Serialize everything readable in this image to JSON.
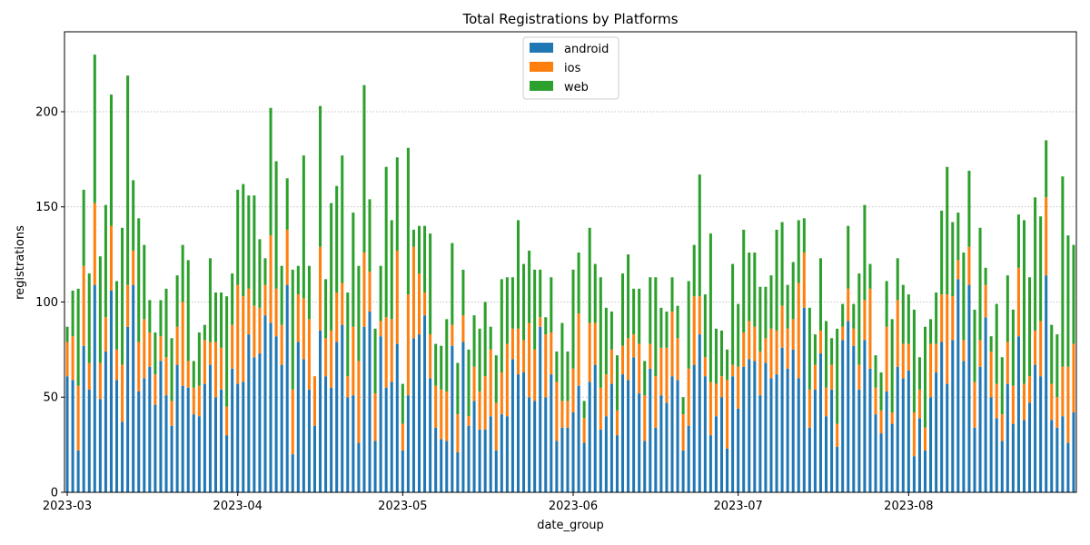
{
  "chart_data": {
    "type": "bar",
    "stacked": true,
    "title": "Total Registrations by Platforms",
    "xlabel": "date_group",
    "ylabel": "registrations",
    "ylim": [
      0,
      242
    ],
    "grid": "horizontal-dotted",
    "legend_position": "top-center",
    "date_start": "2023-03-01",
    "x_ticks": [
      "2023-03",
      "2023-04",
      "2023-05",
      "2023-06",
      "2023-07",
      "2023-08"
    ],
    "x_tick_days": [
      0,
      31,
      61,
      92,
      122,
      153
    ],
    "y_ticks": [
      0,
      50,
      100,
      150,
      200
    ],
    "colors": {
      "android": "#1f77b4",
      "ios": "#ff7f0e",
      "web": "#2ca02c"
    },
    "series": [
      {
        "name": "android",
        "values": [
          61,
          59,
          22,
          77,
          54,
          109,
          49,
          74,
          106,
          59,
          37,
          87,
          109,
          53,
          60,
          66,
          46,
          69,
          51,
          35,
          67,
          56,
          55,
          41,
          40,
          57,
          67,
          50,
          54,
          30,
          65,
          57,
          58,
          83,
          71,
          73,
          93,
          89,
          82,
          67,
          109,
          20,
          79,
          70,
          54,
          35,
          85,
          61,
          55,
          79,
          88,
          50,
          51,
          26,
          87,
          95,
          27,
          82,
          55,
          58,
          78,
          22,
          51,
          81,
          83,
          93,
          60,
          34,
          28,
          27,
          77,
          21,
          79,
          35,
          48,
          33,
          33,
          40,
          22,
          41,
          40,
          70,
          62,
          63,
          50,
          48,
          87,
          50,
          62,
          27,
          34,
          34,
          42,
          56,
          26,
          58,
          67,
          33,
          40,
          57,
          30,
          62,
          59,
          71,
          52,
          27,
          65,
          34,
          51,
          47,
          61,
          59,
          22,
          35,
          67,
          83,
          61,
          30,
          40,
          50,
          23,
          61,
          44,
          66,
          70,
          69,
          51,
          68,
          60,
          62,
          76,
          65,
          75,
          60,
          97,
          34,
          54,
          73,
          40,
          54,
          24,
          80,
          90,
          77,
          54,
          80,
          65,
          41,
          31,
          53,
          36,
          66,
          60,
          64,
          19,
          39,
          22,
          50,
          63,
          79,
          57,
          80,
          112,
          69,
          109,
          34,
          66,
          92,
          50,
          39,
          27,
          57,
          36,
          82,
          38,
          47,
          67,
          61,
          114,
          38,
          34,
          40,
          26,
          42
        ],
        "labels": []
      },
      {
        "name": "ios",
        "values": [
          18,
          23,
          34,
          42,
          14,
          43,
          19,
          18,
          34,
          16,
          30,
          22,
          18,
          26,
          31,
          18,
          16,
          13,
          20,
          13,
          20,
          44,
          14,
          14,
          16,
          23,
          12,
          29,
          22,
          15,
          23,
          52,
          45,
          24,
          27,
          24,
          16,
          46,
          25,
          21,
          29,
          34,
          25,
          32,
          37,
          26,
          44,
          20,
          30,
          26,
          22,
          11,
          36,
          43,
          39,
          21,
          25,
          8,
          37,
          33,
          49,
          14,
          53,
          48,
          32,
          12,
          23,
          22,
          26,
          26,
          11,
          20,
          14,
          5,
          18,
          20,
          28,
          35,
          25,
          22,
          38,
          16,
          24,
          17,
          39,
          27,
          5,
          33,
          22,
          31,
          14,
          14,
          23,
          38,
          13,
          31,
          22,
          22,
          22,
          18,
          13,
          15,
          22,
          12,
          26,
          24,
          13,
          27,
          25,
          29,
          34,
          22,
          19,
          30,
          36,
          20,
          10,
          28,
          17,
          11,
          36,
          6,
          22,
          18,
          20,
          18,
          23,
          13,
          26,
          23,
          22,
          21,
          16,
          50,
          29,
          20,
          13,
          12,
          15,
          13,
          12,
          7,
          17,
          9,
          13,
          21,
          42,
          14,
          12,
          34,
          6,
          35,
          18,
          14,
          23,
          15,
          12,
          28,
          15,
          25,
          47,
          23,
          10,
          11,
          20,
          24,
          14,
          17,
          24,
          18,
          14,
          22,
          20,
          36,
          19,
          14,
          18,
          29,
          41,
          19,
          16,
          26,
          40,
          36
        ],
        "labels": []
      },
      {
        "name": "web",
        "values": [
          8,
          24,
          51,
          40,
          47,
          78,
          56,
          59,
          69,
          36,
          72,
          110,
          37,
          65,
          39,
          17,
          22,
          19,
          36,
          33,
          27,
          30,
          53,
          14,
          28,
          8,
          44,
          26,
          29,
          58,
          27,
          50,
          59,
          49,
          58,
          36,
          14,
          67,
          67,
          31,
          27,
          63,
          15,
          75,
          28,
          0,
          74,
          31,
          67,
          56,
          67,
          44,
          60,
          50,
          88,
          38,
          34,
          29,
          79,
          52,
          49,
          21,
          77,
          9,
          25,
          35,
          53,
          22,
          23,
          38,
          43,
          27,
          24,
          35,
          27,
          33,
          39,
          12,
          25,
          49,
          35,
          27,
          57,
          40,
          38,
          42,
          25,
          9,
          29,
          16,
          41,
          26,
          52,
          32,
          9,
          50,
          31,
          58,
          35,
          20,
          29,
          38,
          44,
          24,
          29,
          18,
          35,
          52,
          21,
          19,
          18,
          17,
          9,
          46,
          27,
          64,
          33,
          78,
          29,
          24,
          16,
          53,
          33,
          54,
          36,
          39,
          34,
          27,
          28,
          53,
          44,
          23,
          30,
          33,
          18,
          43,
          16,
          38,
          35,
          14,
          50,
          12,
          33,
          13,
          48,
          50,
          13,
          17,
          20,
          24,
          49,
          22,
          31,
          26,
          54,
          17,
          53,
          13,
          27,
          44,
          67,
          39,
          25,
          46,
          40,
          38,
          59,
          9,
          8,
          42,
          30,
          35,
          40,
          28,
          86,
          52,
          70,
          55,
          30,
          31,
          33,
          100,
          69,
          52
        ],
        "labels": []
      }
    ]
  }
}
